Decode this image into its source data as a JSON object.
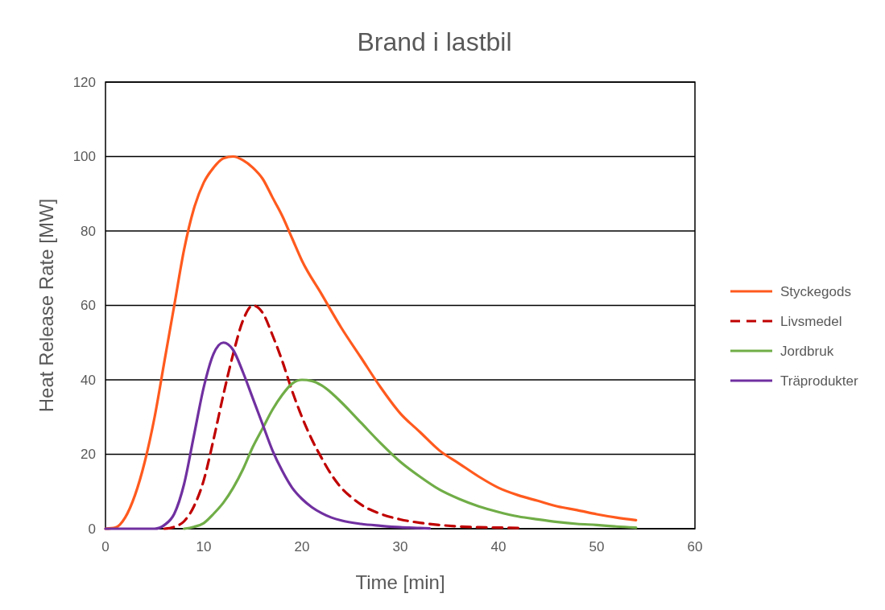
{
  "chart_data": {
    "type": "line",
    "title": "Brand i lastbil",
    "xlabel": "Time [min]",
    "ylabel": "Heat Release Rate [MW]",
    "xlim": [
      0,
      60
    ],
    "xticks": [
      0,
      10,
      20,
      30,
      40,
      50,
      60
    ],
    "ylim": [
      0,
      120
    ],
    "yticks": [
      0,
      20,
      40,
      60,
      80,
      100,
      120
    ],
    "grid": "y",
    "legend": "right",
    "series": [
      {
        "name": "Styckegods",
        "color": "#ff5a1e",
        "line_style": "solid",
        "x": [
          0,
          1,
          2,
          3,
          4,
          5,
          6,
          7,
          8,
          9,
          10,
          11,
          12,
          13,
          14,
          15,
          16,
          17,
          18,
          19,
          20,
          22,
          24,
          26,
          28,
          30,
          32,
          34,
          36,
          38,
          40,
          42,
          44,
          46,
          48,
          50,
          52,
          54
        ],
        "values": [
          0,
          0.3,
          3,
          9,
          18,
          30,
          45,
          60,
          75,
          86,
          93,
          97,
          99.5,
          100,
          99,
          97,
          94,
          89,
          84,
          78,
          72,
          63,
          54,
          46,
          38,
          31,
          26,
          21,
          17.5,
          14,
          11,
          9,
          7.5,
          6,
          5,
          3.9,
          3,
          2.3
        ]
      },
      {
        "name": "Livsmedel",
        "color": "#c00000",
        "line_style": "dashed",
        "x": [
          6,
          7,
          8,
          9,
          10,
          11,
          12,
          13,
          14,
          15,
          16,
          17,
          18,
          19,
          20,
          21,
          22,
          23,
          24,
          25,
          26,
          28,
          30,
          32,
          34,
          36,
          38,
          40,
          42
        ],
        "values": [
          0,
          0.5,
          2,
          6,
          13,
          24,
          36,
          47,
          56,
          60,
          58,
          52,
          45,
          37,
          30,
          24,
          19,
          14.5,
          11,
          8.5,
          6.5,
          4,
          2.5,
          1.6,
          1,
          0.6,
          0.4,
          0.3,
          0.2
        ]
      },
      {
        "name": "Jordbruk",
        "color": "#70ad47",
        "line_style": "solid",
        "x": [
          8,
          9,
          10,
          11,
          12,
          13,
          14,
          15,
          16,
          17,
          18,
          19,
          20,
          21,
          22,
          23,
          24,
          26,
          28,
          30,
          32,
          34,
          36,
          38,
          40,
          42,
          44,
          46,
          48,
          50,
          52,
          54
        ],
        "values": [
          0,
          0.5,
          1.5,
          4,
          7,
          11,
          16,
          22,
          27,
          32,
          36,
          39,
          40,
          39.7,
          38.5,
          36.5,
          34,
          28.5,
          23,
          18,
          14,
          10.5,
          8,
          6,
          4.5,
          3.3,
          2.5,
          1.8,
          1.3,
          1,
          0.6,
          0.3
        ]
      },
      {
        "name": "Träprodukter",
        "color": "#7030a0",
        "line_style": "solid",
        "x": [
          0,
          5,
          6,
          7,
          8,
          9,
          10,
          11,
          12,
          13,
          14,
          15,
          16,
          17,
          18,
          19,
          20,
          21,
          22,
          23,
          24,
          26,
          28,
          30,
          32,
          33
        ],
        "values": [
          0,
          0,
          1,
          4,
          12,
          25,
          38,
          47,
          50,
          48,
          42,
          35,
          28,
          21,
          15.5,
          11,
          8,
          5.8,
          4.2,
          3,
          2.2,
          1.3,
          0.8,
          0.4,
          0.2,
          0.1
        ]
      }
    ]
  }
}
